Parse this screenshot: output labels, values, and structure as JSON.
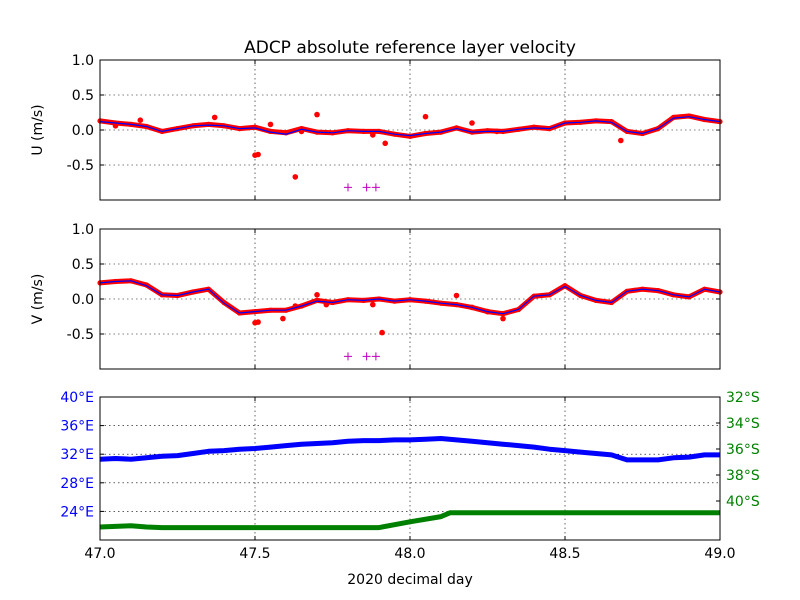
{
  "chart_data": {
    "type": "line",
    "title": "ADCP absolute reference layer velocity",
    "xlabel": "2020 decimal day",
    "xlim": [
      47.0,
      49.0
    ],
    "xticks": [
      "47.0",
      "47.5",
      "48.0",
      "48.5",
      "49.0"
    ],
    "colors": {
      "u_v_points": "#ff0000",
      "u_v_line": "#0000ff",
      "markers": "#bf00bf",
      "lon": "#0000ff",
      "lat": "#008000"
    },
    "panels": [
      {
        "name": "u-panel",
        "ylabel": "U (m/s)",
        "ylim": [
          -1.0,
          1.0
        ],
        "yticks": [
          "1.0",
          "0.5",
          "0.0",
          "-0.5"
        ],
        "ytick_values": [
          1.0,
          0.5,
          0.0,
          -0.5
        ],
        "grid": true,
        "series": [
          {
            "style": "red-dots",
            "x": [
              47.0,
              47.05,
              47.1,
              47.15,
              47.2,
              47.25,
              47.3,
              47.35,
              47.4,
              47.45,
              47.5,
              47.55,
              47.6,
              47.65,
              47.7,
              47.75,
              47.8,
              47.85,
              47.9,
              47.95,
              48.0,
              48.05,
              48.1,
              48.15,
              48.2,
              48.25,
              48.3,
              48.35,
              48.4,
              48.45,
              48.5,
              48.55,
              48.6,
              48.65,
              48.7,
              48.75,
              48.8,
              48.85,
              48.9,
              48.95,
              49.0
            ],
            "y": [
              0.13,
              0.1,
              0.08,
              0.05,
              -0.02,
              0.02,
              0.06,
              0.08,
              0.06,
              0.02,
              0.04,
              -0.02,
              -0.04,
              0.02,
              -0.03,
              -0.04,
              -0.01,
              -0.02,
              -0.02,
              -0.06,
              -0.09,
              -0.05,
              -0.03,
              0.03,
              -0.03,
              -0.01,
              -0.02,
              0.01,
              0.04,
              0.02,
              0.1,
              0.11,
              0.13,
              0.12,
              -0.02,
              -0.05,
              0.02,
              0.18,
              0.2,
              0.15,
              0.12
            ]
          },
          {
            "style": "red-outliers",
            "x": [
              47.05,
              47.13,
              47.37,
              47.5,
              47.51,
              47.55,
              47.63,
              47.65,
              47.7,
              47.88,
              47.92,
              48.05,
              48.2,
              48.28,
              48.68
            ],
            "y": [
              0.06,
              0.14,
              0.18,
              -0.36,
              -0.35,
              0.08,
              -0.67,
              -0.02,
              0.22,
              -0.07,
              -0.19,
              0.19,
              0.1,
              -0.02,
              -0.15
            ]
          },
          {
            "style": "blue-line",
            "x": [
              47.0,
              47.05,
              47.1,
              47.15,
              47.2,
              47.25,
              47.3,
              47.35,
              47.4,
              47.45,
              47.5,
              47.55,
              47.6,
              47.65,
              47.7,
              47.75,
              47.8,
              47.85,
              47.9,
              47.95,
              48.0,
              48.05,
              48.1,
              48.15,
              48.2,
              48.25,
              48.3,
              48.35,
              48.4,
              48.45,
              48.5,
              48.55,
              48.6,
              48.65,
              48.7,
              48.75,
              48.8,
              48.85,
              48.9,
              48.95,
              49.0
            ],
            "y": [
              0.12,
              0.1,
              0.08,
              0.05,
              -0.02,
              0.02,
              0.06,
              0.07,
              0.06,
              0.02,
              0.03,
              -0.03,
              -0.06,
              0.01,
              -0.03,
              -0.04,
              -0.01,
              -0.02,
              -0.02,
              -0.06,
              -0.08,
              -0.05,
              -0.03,
              0.02,
              -0.03,
              -0.02,
              -0.02,
              0.01,
              0.03,
              0.02,
              0.1,
              0.11,
              0.13,
              0.11,
              -0.02,
              -0.05,
              0.02,
              0.17,
              0.19,
              0.15,
              0.12
            ]
          },
          {
            "style": "magenta-plus",
            "x": [
              47.8,
              47.86,
              47.89
            ],
            "y": [
              -0.82,
              -0.82,
              -0.82
            ]
          }
        ]
      },
      {
        "name": "v-panel",
        "ylabel": "V (m/s)",
        "ylim": [
          -1.0,
          1.0
        ],
        "yticks": [
          "1.0",
          "0.5",
          "0.0",
          "-0.5"
        ],
        "ytick_values": [
          1.0,
          0.5,
          0.0,
          -0.5
        ],
        "grid": true,
        "series": [
          {
            "style": "red-dots",
            "x": [
              47.0,
              47.05,
              47.1,
              47.15,
              47.2,
              47.25,
              47.3,
              47.35,
              47.4,
              47.45,
              47.5,
              47.55,
              47.6,
              47.65,
              47.7,
              47.75,
              47.8,
              47.85,
              47.9,
              47.95,
              48.0,
              48.05,
              48.1,
              48.15,
              48.2,
              48.25,
              48.3,
              48.35,
              48.4,
              48.45,
              48.5,
              48.55,
              48.6,
              48.65,
              48.7,
              48.75,
              48.8,
              48.85,
              48.9,
              48.95,
              49.0
            ],
            "y": [
              0.23,
              0.25,
              0.26,
              0.2,
              0.06,
              0.05,
              0.1,
              0.14,
              -0.05,
              -0.2,
              -0.18,
              -0.16,
              -0.16,
              -0.1,
              -0.02,
              -0.05,
              -0.01,
              -0.02,
              0.0,
              -0.03,
              -0.01,
              -0.03,
              -0.06,
              -0.08,
              -0.12,
              -0.18,
              -0.21,
              -0.15,
              0.04,
              0.06,
              0.19,
              0.05,
              -0.02,
              -0.05,
              0.11,
              0.14,
              0.12,
              0.06,
              0.03,
              0.14,
              0.1
            ]
          },
          {
            "style": "red-outliers",
            "x": [
              47.5,
              47.51,
              47.59,
              47.63,
              47.7,
              47.73,
              47.88,
              47.91,
              48.15,
              48.2,
              48.25,
              48.3
            ],
            "y": [
              -0.34,
              -0.33,
              -0.28,
              -0.1,
              0.06,
              -0.08,
              -0.08,
              -0.48,
              0.05,
              -0.12,
              -0.18,
              -0.28
            ]
          },
          {
            "style": "blue-line",
            "x": [
              47.0,
              47.05,
              47.1,
              47.15,
              47.2,
              47.25,
              47.3,
              47.35,
              47.4,
              47.45,
              47.5,
              47.55,
              47.6,
              47.65,
              47.7,
              47.75,
              47.8,
              47.85,
              47.9,
              47.95,
              48.0,
              48.05,
              48.1,
              48.15,
              48.2,
              48.25,
              48.3,
              48.35,
              48.4,
              48.45,
              48.5,
              48.55,
              48.6,
              48.65,
              48.7,
              48.75,
              48.8,
              48.85,
              48.9,
              48.95,
              49.0
            ],
            "y": [
              0.23,
              0.25,
              0.26,
              0.19,
              0.06,
              0.05,
              0.1,
              0.14,
              -0.06,
              -0.2,
              -0.18,
              -0.16,
              -0.16,
              -0.1,
              -0.03,
              -0.05,
              -0.01,
              -0.02,
              0.0,
              -0.03,
              -0.01,
              -0.03,
              -0.06,
              -0.08,
              -0.12,
              -0.18,
              -0.21,
              -0.15,
              0.04,
              0.06,
              0.18,
              0.05,
              -0.02,
              -0.05,
              0.11,
              0.14,
              0.12,
              0.06,
              0.03,
              0.14,
              0.1
            ]
          },
          {
            "style": "magenta-plus",
            "x": [
              47.8,
              47.86,
              47.89
            ],
            "y": [
              -0.82,
              -0.82,
              -0.82
            ]
          }
        ]
      },
      {
        "name": "position-panel",
        "left_ylim": [
          20,
          40
        ],
        "left_yticks": [
          "40°E",
          "36°E",
          "32°E",
          "28°E",
          "24°E"
        ],
        "left_ytick_values": [
          40,
          36,
          32,
          28,
          24
        ],
        "right_ylim": [
          -43,
          -32
        ],
        "right_yticks": [
          "32°S",
          "34°S",
          "36°S",
          "38°S",
          "40°S"
        ],
        "right_ytick_values": [
          -32,
          -34,
          -36,
          -38,
          -40
        ],
        "grid": true,
        "series": [
          {
            "style": "lon-line",
            "axis": "left",
            "x": [
              47.0,
              47.05,
              47.1,
              47.15,
              47.2,
              47.25,
              47.3,
              47.35,
              47.4,
              47.45,
              47.5,
              47.55,
              47.6,
              47.65,
              47.7,
              47.75,
              47.8,
              47.85,
              47.9,
              47.95,
              48.0,
              48.05,
              48.1,
              48.15,
              48.2,
              48.25,
              48.3,
              48.35,
              48.4,
              48.45,
              48.5,
              48.55,
              48.6,
              48.65,
              48.7,
              48.75,
              48.8,
              48.85,
              48.9,
              48.95,
              49.0
            ],
            "y": [
              31.3,
              31.4,
              31.3,
              31.5,
              31.7,
              31.8,
              32.1,
              32.4,
              32.5,
              32.7,
              32.8,
              33.0,
              33.2,
              33.4,
              33.5,
              33.6,
              33.8,
              33.9,
              33.9,
              34.0,
              34.0,
              34.1,
              34.2,
              34.0,
              33.8,
              33.6,
              33.4,
              33.2,
              33.0,
              32.7,
              32.5,
              32.3,
              32.1,
              31.9,
              31.2,
              31.2,
              31.2,
              31.5,
              31.6,
              31.9,
              31.9
            ]
          },
          {
            "style": "lat-line",
            "axis": "right",
            "x": [
              47.0,
              47.05,
              47.1,
              47.15,
              47.2,
              47.3,
              47.5,
              47.7,
              47.9,
              48.0,
              48.1,
              48.13,
              48.3,
              48.5,
              48.7,
              48.9,
              49.0
            ],
            "y": [
              -42.0,
              -41.95,
              -41.9,
              -42.0,
              -42.05,
              -42.05,
              -42.05,
              -42.05,
              -42.05,
              -41.6,
              -41.2,
              -40.9,
              -40.9,
              -40.9,
              -40.9,
              -40.9,
              -40.9
            ]
          }
        ]
      }
    ]
  }
}
